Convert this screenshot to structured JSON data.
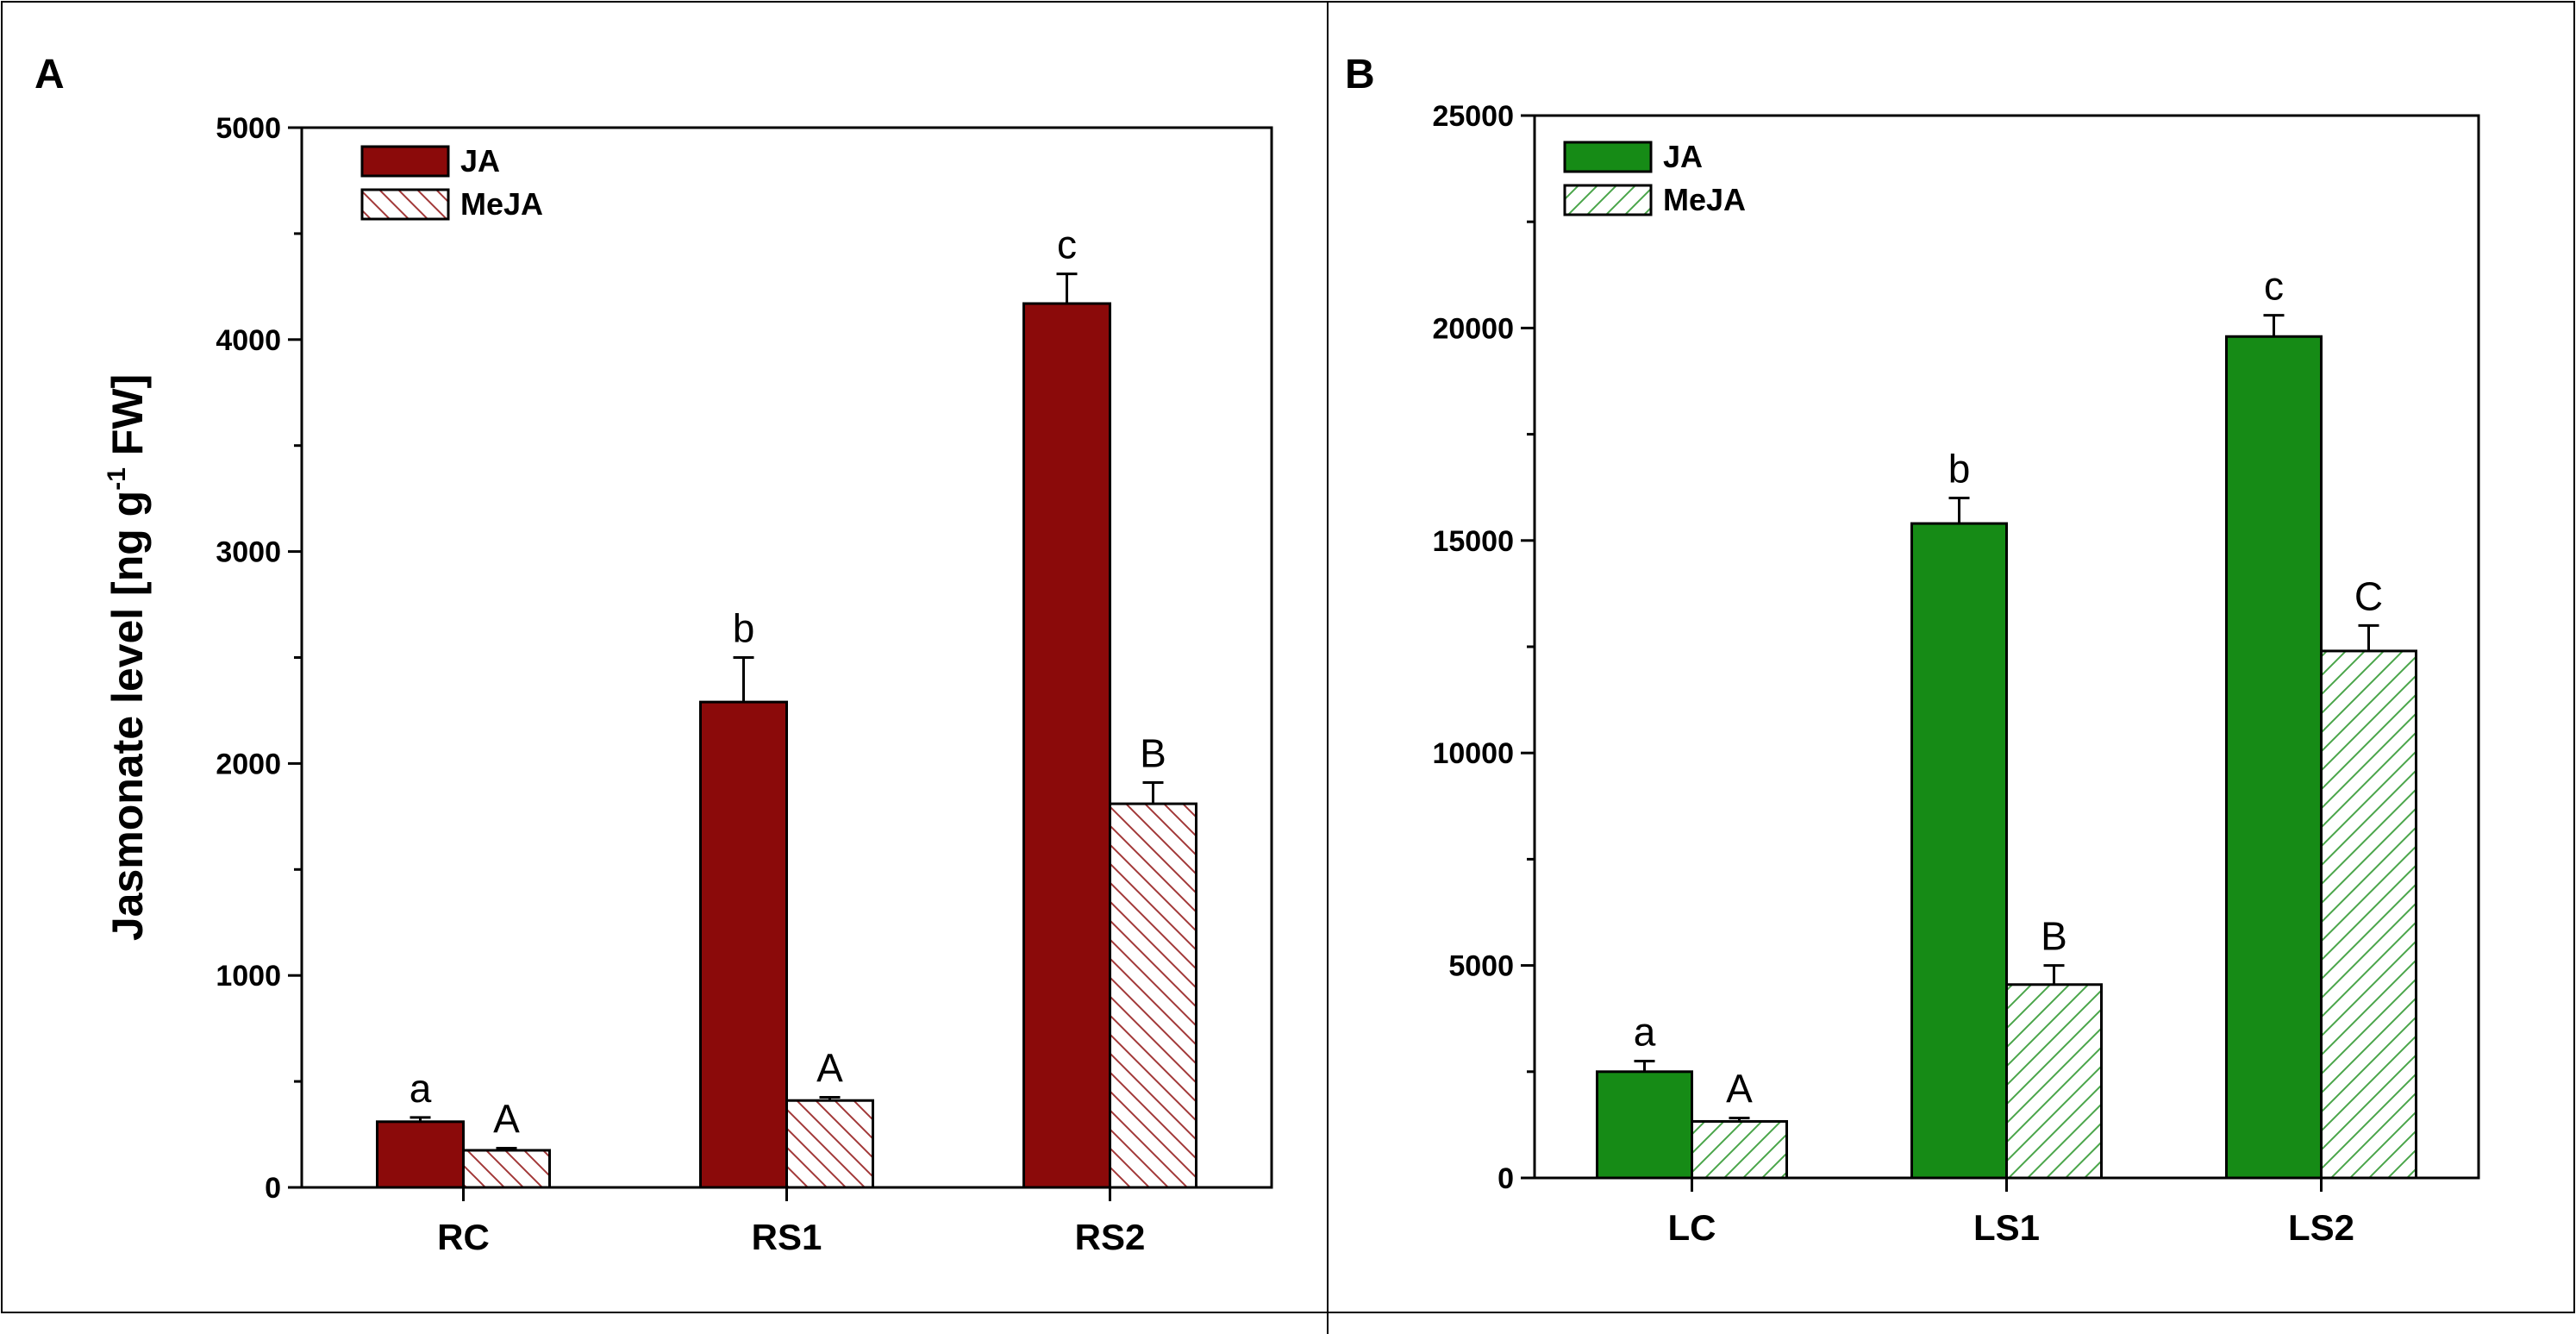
{
  "chart_data": [
    {
      "panel": "A",
      "type": "bar",
      "categories": [
        "RC",
        "RS1",
        "RS2"
      ],
      "series": [
        {
          "name": "JA",
          "values": [
            310,
            2290,
            4170
          ],
          "errors": [
            20,
            210,
            140
          ],
          "letters": [
            "a",
            "b",
            "c"
          ],
          "fill": "#8b0a0a",
          "pattern": "solid"
        },
        {
          "name": "MeJA",
          "values": [
            175,
            410,
            1810
          ],
          "errors": [
            10,
            15,
            100
          ],
          "letters": [
            "A",
            "A",
            "B"
          ],
          "fill": "#ffffff",
          "hatch_color": "#a23838",
          "pattern": "hatch-back"
        }
      ],
      "ylim": [
        0,
        5000
      ],
      "yticks": [
        0,
        1000,
        2000,
        3000,
        4000,
        5000
      ],
      "ylabel": "Jasmonate level [ng g",
      "ylabel_sup": "-1",
      "ylabel_tail": " FW]",
      "legend_position": "top-left"
    },
    {
      "panel": "B",
      "type": "bar",
      "categories": [
        "LC",
        "LS1",
        "LS2"
      ],
      "series": [
        {
          "name": "JA",
          "values": [
            2500,
            15400,
            19800
          ],
          "errors": [
            250,
            600,
            500
          ],
          "letters": [
            "a",
            "b",
            "c"
          ],
          "fill": "#168b16",
          "pattern": "solid"
        },
        {
          "name": "MeJA",
          "values": [
            1330,
            4550,
            12400
          ],
          "errors": [
            80,
            450,
            600
          ],
          "letters": [
            "A",
            "B",
            "C"
          ],
          "fill": "#ffffff",
          "hatch_color": "#4aa54a",
          "pattern": "hatch-forward"
        }
      ],
      "ylim": [
        0,
        25000
      ],
      "yticks": [
        0,
        5000,
        10000,
        15000,
        20000,
        25000
      ],
      "ylabel": "",
      "legend_position": "top-left"
    }
  ]
}
